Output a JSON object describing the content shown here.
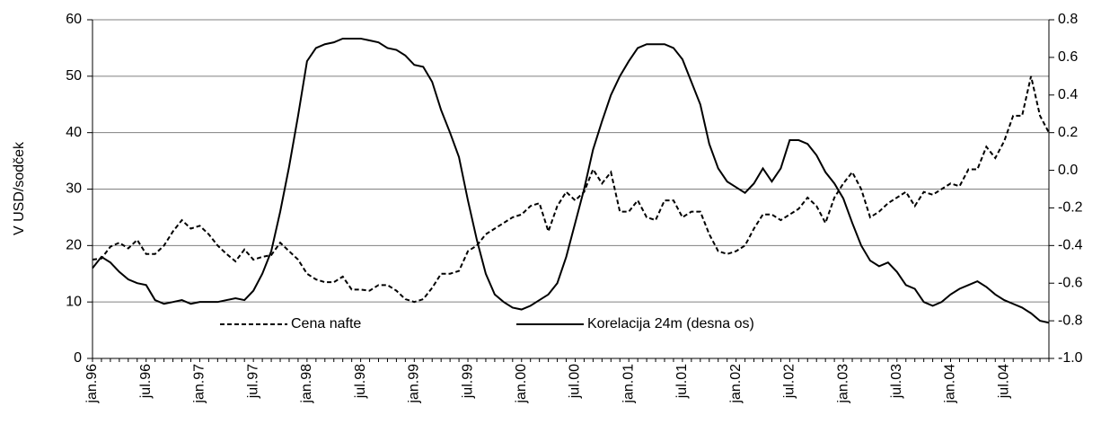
{
  "chart_data": {
    "type": "line",
    "y_label": "V USD/sodček",
    "categories": [
      "jan.96",
      null,
      null,
      null,
      null,
      null,
      "jul.96",
      null,
      null,
      null,
      null,
      null,
      "jan.97",
      null,
      null,
      null,
      null,
      null,
      "jul.97",
      null,
      null,
      null,
      null,
      null,
      "jan.98",
      null,
      null,
      null,
      null,
      null,
      "jul.98",
      null,
      null,
      null,
      null,
      null,
      "jan.99",
      null,
      null,
      null,
      null,
      null,
      "jul.99",
      null,
      null,
      null,
      null,
      null,
      "jan.00",
      null,
      null,
      null,
      null,
      null,
      "jul.00",
      null,
      null,
      null,
      null,
      null,
      "jan.01",
      null,
      null,
      null,
      null,
      null,
      "jul.01",
      null,
      null,
      null,
      null,
      null,
      "jan.02",
      null,
      null,
      null,
      null,
      null,
      "jul.02",
      null,
      null,
      null,
      null,
      null,
      "jan.03",
      null,
      null,
      null,
      null,
      null,
      "jul.03",
      null,
      null,
      null,
      null,
      null,
      "jan.04",
      null,
      null,
      null,
      null,
      null,
      "jul.04",
      null,
      null,
      null,
      null,
      null
    ],
    "series": [
      {
        "name": "Cena nafte",
        "color": "#000000",
        "style": "dashed",
        "axis": "y",
        "values": [
          17.5,
          17.7,
          19.8,
          20.5,
          19.5,
          21,
          18.5,
          18.5,
          20,
          22.5,
          24.5,
          23,
          23.5,
          22,
          20,
          18.5,
          17.2,
          19.3,
          17.5,
          18,
          18.3,
          20.5,
          19,
          17.5,
          15,
          14,
          13.5,
          13.5,
          14.5,
          12.2,
          12.2,
          12,
          13,
          13,
          12,
          10.5,
          10,
          10.5,
          12.5,
          15,
          15,
          15.5,
          19,
          20,
          22,
          23,
          24,
          25,
          25.5,
          27,
          27.5,
          22.5,
          27,
          29.5,
          28,
          29.5,
          33.5,
          31,
          33,
          26,
          26,
          28,
          25,
          24.5,
          28,
          28,
          25,
          26,
          26,
          22,
          19,
          18.5,
          19,
          20,
          23,
          25.5,
          25.5,
          24.5,
          25.5,
          26.5,
          28.5,
          27,
          24,
          28.5,
          31,
          33,
          30,
          25,
          26,
          27.5,
          28.5,
          29.5,
          27,
          29.5,
          29,
          30,
          31,
          30.5,
          33.5,
          33.5,
          37.5,
          35.5,
          38.5,
          43,
          43,
          50,
          43,
          40
        ]
      },
      {
        "name": "Korelacija 24m (desna os)",
        "color": "#000000",
        "style": "solid",
        "axis": "y2",
        "values": [
          -0.52,
          -0.46,
          -0.49,
          -0.54,
          -0.58,
          -0.6,
          -0.61,
          -0.69,
          -0.71,
          -0.7,
          -0.69,
          -0.71,
          -0.7,
          -0.7,
          -0.7,
          -0.69,
          -0.68,
          -0.69,
          -0.64,
          -0.55,
          -0.43,
          -0.22,
          0.02,
          0.29,
          0.58,
          0.65,
          0.67,
          0.68,
          0.7,
          0.7,
          0.7,
          0.69,
          0.68,
          0.65,
          0.64,
          0.61,
          0.56,
          0.55,
          0.47,
          0.32,
          0.2,
          0.07,
          -0.16,
          -0.37,
          -0.55,
          -0.66,
          -0.7,
          -0.73,
          -0.74,
          -0.72,
          -0.69,
          -0.66,
          -0.6,
          -0.46,
          -0.28,
          -0.1,
          0.11,
          0.26,
          0.4,
          0.5,
          0.58,
          0.65,
          0.67,
          0.67,
          0.67,
          0.65,
          0.59,
          0.47,
          0.35,
          0.14,
          0.01,
          -0.06,
          -0.09,
          -0.12,
          -0.07,
          0.01,
          -0.06,
          0.01,
          0.16,
          0.16,
          0.14,
          0.08,
          -0.01,
          -0.07,
          -0.15,
          -0.28,
          -0.4,
          -0.48,
          -0.51,
          -0.49,
          -0.54,
          -0.61,
          -0.63,
          -0.7,
          -0.72,
          -0.7,
          -0.66,
          -0.63,
          -0.61,
          -0.59,
          -0.62,
          -0.66,
          -0.69,
          -0.71,
          -0.73,
          -0.76,
          -0.8,
          -0.81
        ]
      }
    ],
    "ylim": [
      0,
      60
    ],
    "yticks": [
      0,
      10,
      20,
      30,
      40,
      50,
      60
    ],
    "y2lim": [
      -1.0,
      0.8
    ],
    "y2ticks": [
      {
        "value": -1.0,
        "label": "-1.0"
      },
      -0.8,
      -0.6,
      -0.4,
      -0.2,
      {
        "value": 0.0,
        "label": "0.0"
      },
      0.2,
      0.4,
      0.6,
      0.8
    ],
    "grid": true,
    "legend": "bottom"
  }
}
